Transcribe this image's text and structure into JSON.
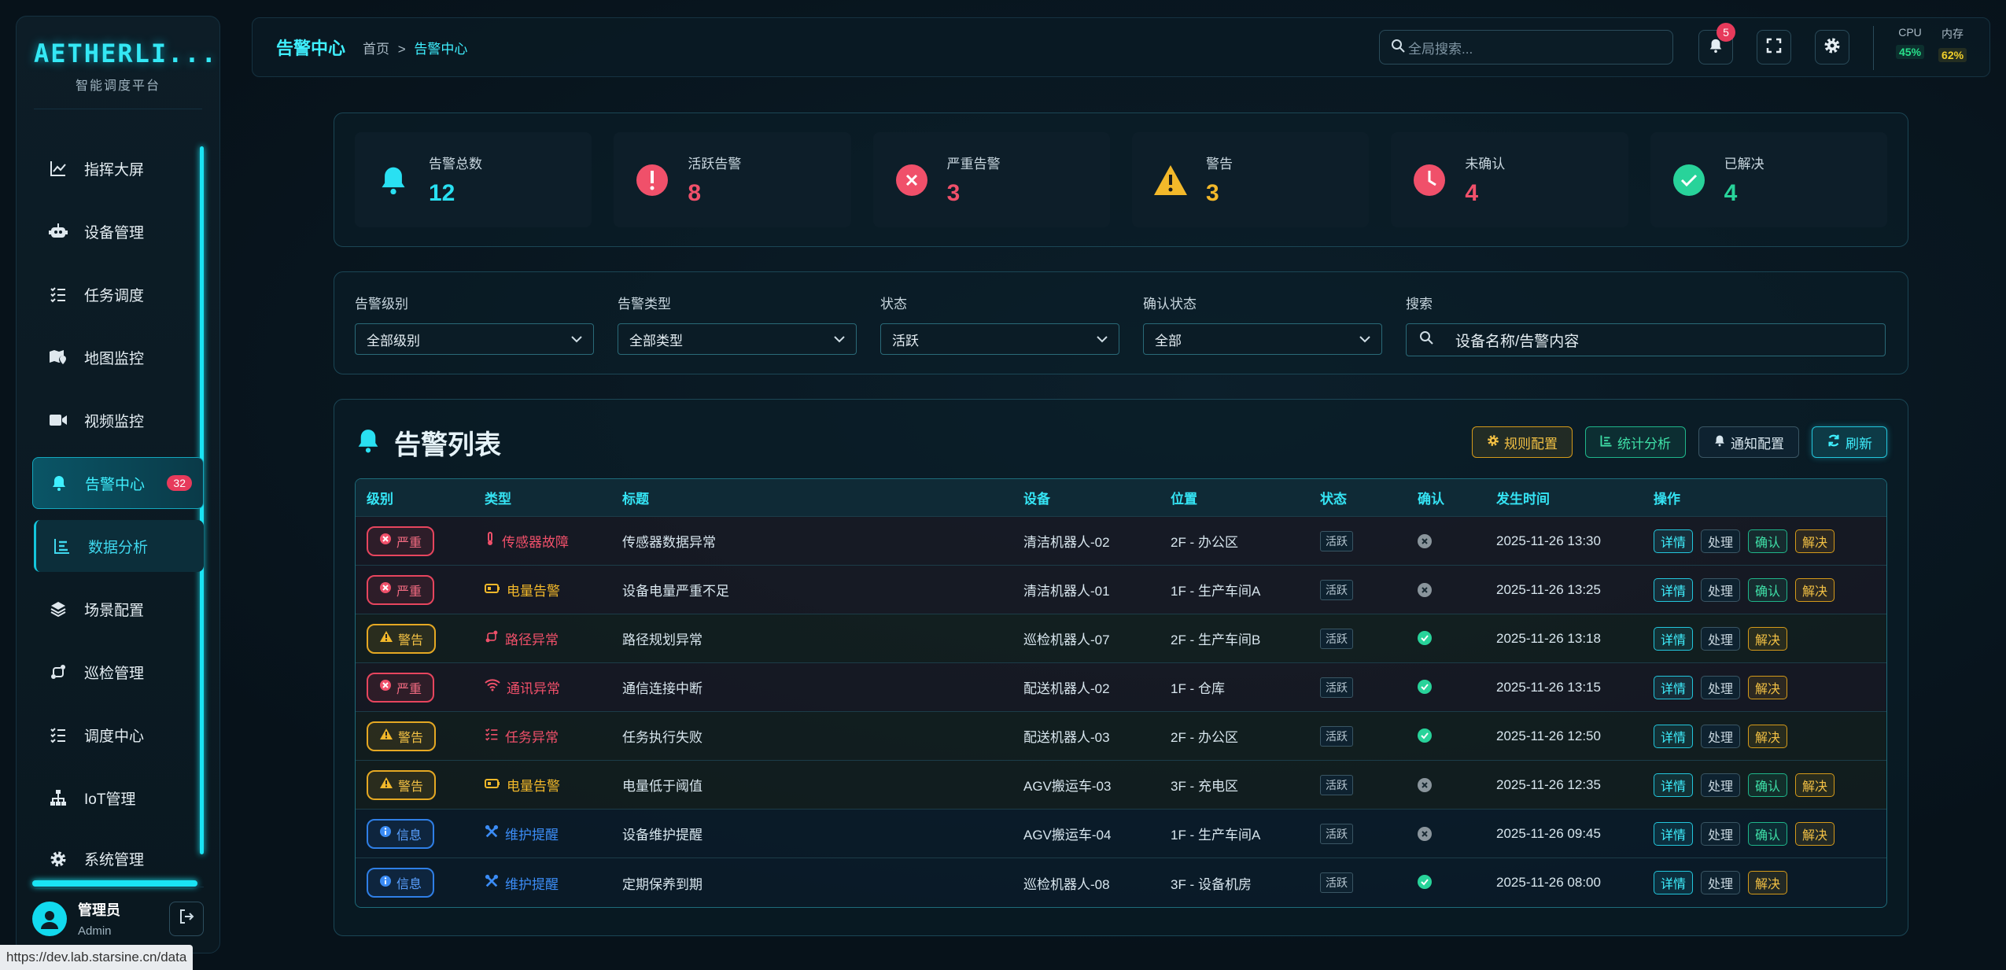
{
  "logo": {
    "text": "AETHERLI...",
    "subtitle": "智能调度平台"
  },
  "nav": [
    {
      "label": "指挥大屏"
    },
    {
      "label": "设备管理"
    },
    {
      "label": "任务调度"
    },
    {
      "label": "地图监控"
    },
    {
      "label": "视频监控"
    },
    {
      "label": "告警中心",
      "badge": "32"
    },
    {
      "label": "数据分析"
    },
    {
      "label": "场景配置"
    },
    {
      "label": "巡检管理"
    },
    {
      "label": "调度中心"
    },
    {
      "label": "IoT管理"
    },
    {
      "label": "系统管理"
    }
  ],
  "user": {
    "name": "管理员",
    "role": "Admin"
  },
  "header": {
    "title": "告警中心",
    "breadcrumb_home": "首页",
    "breadcrumb_sep": ">",
    "breadcrumb_current": "告警中心",
    "search_placeholder": "全局搜索...",
    "notif_count": "5",
    "cpu_label": "CPU",
    "cpu_value": "45%",
    "mem_label": "内存",
    "mem_value": "62%"
  },
  "cards": [
    {
      "label": "告警总数",
      "value": "12",
      "color": "#29e0f2"
    },
    {
      "label": "活跃告警",
      "value": "8",
      "color": "#f0506a"
    },
    {
      "label": "严重告警",
      "value": "3",
      "color": "#f0506a"
    },
    {
      "label": "警告",
      "value": "3",
      "color": "#f2b82a"
    },
    {
      "label": "未确认",
      "value": "4",
      "color": "#f0506a"
    },
    {
      "label": "已解决",
      "value": "4",
      "color": "#28d39a"
    }
  ],
  "filters": {
    "level_label": "告警级别",
    "level_value": "全部级别",
    "type_label": "告警类型",
    "type_value": "全部类型",
    "status_label": "状态",
    "status_value": "活跃",
    "confirm_label": "确认状态",
    "confirm_value": "全部",
    "search_label": "搜索",
    "search_placeholder": "设备名称/告警内容"
  },
  "table": {
    "title": "告警列表",
    "actions": {
      "rules": "规则配置",
      "stats": "统计分析",
      "notify": "通知配置",
      "refresh": "刷新"
    },
    "columns": [
      "级别",
      "类型",
      "标题",
      "设备",
      "位置",
      "状态",
      "确认",
      "发生时间",
      "操作"
    ],
    "btn_detail": "详情",
    "btn_process": "处理",
    "btn_confirm": "确认",
    "btn_resolve": "解决",
    "rows": [
      {
        "level": "严重",
        "lvl": "sev",
        "type": "传感器故障",
        "type_icon": "thermometer-icon",
        "type_color": "#f0506a",
        "title": "传感器数据异常",
        "device": "清洁机器人-02",
        "location": "2F - 办公区",
        "status": "活跃",
        "confirmed": false,
        "time": "2025-11-26 13:30"
      },
      {
        "level": "严重",
        "lvl": "sev",
        "type": "电量告警",
        "type_icon": "battery-icon",
        "type_color": "#f2b82a",
        "title": "设备电量严重不足",
        "device": "清洁机器人-01",
        "location": "1F - 生产车间A",
        "status": "活跃",
        "confirmed": false,
        "time": "2025-11-26 13:25"
      },
      {
        "level": "警告",
        "lvl": "warn",
        "type": "路径异常",
        "type_icon": "route-icon",
        "type_color": "#f0506a",
        "title": "路径规划异常",
        "device": "巡检机器人-07",
        "location": "2F - 生产车间B",
        "status": "活跃",
        "confirmed": true,
        "time": "2025-11-26 13:18"
      },
      {
        "level": "严重",
        "lvl": "sev",
        "type": "通讯异常",
        "type_icon": "wifi-icon",
        "type_color": "#f0506a",
        "title": "通信连接中断",
        "device": "配送机器人-02",
        "location": "1F - 仓库",
        "status": "活跃",
        "confirmed": true,
        "time": "2025-11-26 13:15"
      },
      {
        "level": "警告",
        "lvl": "warn",
        "type": "任务异常",
        "type_icon": "tasks-icon",
        "type_color": "#f0506a",
        "title": "任务执行失败",
        "device": "配送机器人-03",
        "location": "2F - 办公区",
        "status": "活跃",
        "confirmed": true,
        "time": "2025-11-26 12:50"
      },
      {
        "level": "警告",
        "lvl": "warn",
        "type": "电量告警",
        "type_icon": "battery-icon",
        "type_color": "#f2b82a",
        "title": "电量低于阈值",
        "device": "AGV搬运车-03",
        "location": "3F - 充电区",
        "status": "活跃",
        "confirmed": false,
        "time": "2025-11-26 12:35"
      },
      {
        "level": "信息",
        "lvl": "info",
        "type": "维护提醒",
        "type_icon": "tools-icon",
        "type_color": "#3b8cf5",
        "title": "设备维护提醒",
        "device": "AGV搬运车-04",
        "location": "1F - 生产车间A",
        "status": "活跃",
        "confirmed": false,
        "time": "2025-11-26 09:45"
      },
      {
        "level": "信息",
        "lvl": "info",
        "type": "维护提醒",
        "type_icon": "tools-icon",
        "type_color": "#3b8cf5",
        "title": "定期保养到期",
        "device": "巡检机器人-08",
        "location": "3F - 设备机房",
        "status": "活跃",
        "confirmed": true,
        "time": "2025-11-26 08:00"
      }
    ]
  },
  "status_url": "https://dev.lab.starsine.cn/data"
}
